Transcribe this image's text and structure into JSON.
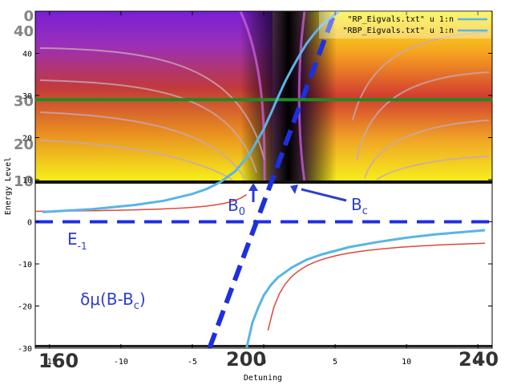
{
  "chart_data": {
    "type": "line",
    "title": "",
    "xlabel": "Detuning",
    "ylabel": "Energy Level",
    "xlim": [
      -16,
      16
    ],
    "ylim": [
      -30,
      50
    ],
    "x_ticks": [
      -15,
      -10,
      -5,
      0,
      5,
      10,
      15
    ],
    "y_ticks": [
      -30,
      -20,
      -10,
      0,
      10,
      20,
      30,
      40
    ],
    "grid": false,
    "legend_position": "top-right",
    "legend": [
      {
        "label": "\"RP_Eigvals.txt\" u 1:n",
        "color": "#5ab4e6"
      },
      {
        "label": "\"RBP_Eigvals.txt\" u 1:n",
        "color": "#5ab4e6"
      }
    ],
    "series": [
      {
        "name": "\"RP_Eigvals.txt\" u 1:n",
        "color": "#5ab4e6",
        "x": [
          -15.5,
          -12,
          -9,
          -7,
          -5,
          -4,
          -3,
          -2,
          -1,
          0,
          0.5,
          1,
          1.5,
          2,
          2.5,
          3,
          3.5,
          4,
          4.5,
          5,
          5.3
        ],
        "y": [
          2.3,
          3.0,
          4.0,
          5.0,
          6.6,
          7.8,
          9.5,
          12.0,
          16.0,
          22.0,
          25.7,
          29.6,
          33.3,
          36.5,
          39.5,
          42.3,
          44.5,
          46.5,
          48.0,
          49.2,
          50.0
        ]
      },
      {
        "name": "\"RBP_Eigvals.txt\" u 1:n",
        "color": "#5ab4e6",
        "x": [
          -1.2,
          -0.8,
          -0.4,
          0,
          0.5,
          1,
          2,
          3,
          4,
          6,
          8,
          10,
          12,
          15.5
        ],
        "y": [
          -30,
          -24,
          -20.5,
          -17.5,
          -15,
          -13.2,
          -10.8,
          -9.0,
          -7.8,
          -6.0,
          -4.8,
          -3.8,
          -3.0,
          -2.0
        ]
      }
    ],
    "annotations": [
      {
        "text": "B",
        "sub": "0"
      },
      {
        "text": "B",
        "sub": "c"
      },
      {
        "text": "E",
        "sub": "-1"
      },
      {
        "text": "δμ(B-B",
        "sub": "c",
        "suffix": ")"
      }
    ],
    "background_image_tick_labels": [
      "160",
      "200",
      "240",
      "40",
      "30",
      "20",
      "10",
      "0"
    ],
    "colors": {
      "curve": "#5ab4e6",
      "green_line": "#1f8a1f",
      "dashed_line": "#1e2fe0",
      "red_curve": "#e0483a",
      "annotation": "#2b3fd0"
    }
  }
}
